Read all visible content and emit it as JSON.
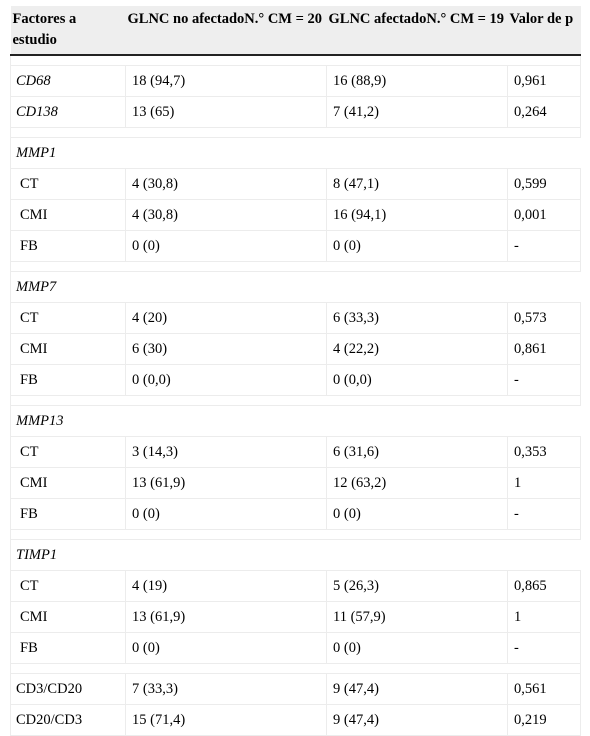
{
  "header": {
    "col1": "Factores a estudio",
    "col2": "GLNC no afectadoN.° CM = 20",
    "col3": "GLNC afectadoN.° CM = 19",
    "col4": "Valor de p"
  },
  "rows": {
    "cd68": {
      "factor": "CD68",
      "no": "18 (94,7)",
      "yes": "16 (88,9)",
      "p": "0,961"
    },
    "cd138": {
      "factor": "CD138",
      "no": "13 (65)",
      "yes": "7 (41,2)",
      "p": "0,264"
    },
    "mmp1": {
      "title": "MMP1",
      "ct": {
        "factor": "CT",
        "no": "4 (30,8)",
        "yes": "8 (47,1)",
        "p": "0,599"
      },
      "cmi": {
        "factor": "CMI",
        "no": "4 (30,8)",
        "yes": "16 (94,1)",
        "p": "0,001"
      },
      "fb": {
        "factor": "FB",
        "no": "0 (0)",
        "yes": "0 (0)",
        "p": "-"
      }
    },
    "mmp7": {
      "title": "MMP7",
      "ct": {
        "factor": "CT",
        "no": "4 (20)",
        "yes": "6 (33,3)",
        "p": "0,573"
      },
      "cmi": {
        "factor": "CMI",
        "no": "6 (30)",
        "yes": "4 (22,2)",
        "p": "0,861"
      },
      "fb": {
        "factor": "FB",
        "no": "0 (0,0)",
        "yes": "0 (0,0)",
        "p": "-"
      }
    },
    "mmp13": {
      "title": "MMP13",
      "ct": {
        "factor": "CT",
        "no": "3 (14,3)",
        "yes": "6 (31,6)",
        "p": "0,353"
      },
      "cmi": {
        "factor": "CMI",
        "no": "13 (61,9)",
        "yes": "12 (63,2)",
        "p": "1"
      },
      "fb": {
        "factor": "FB",
        "no": "0 (0)",
        "yes": "0 (0)",
        "p": "-"
      }
    },
    "timp1": {
      "title": "TIMP1",
      "ct": {
        "factor": "CT",
        "no": "4 (19)",
        "yes": "5 (26,3)",
        "p": "0,865"
      },
      "cmi": {
        "factor": "CMI",
        "no": "13 (61,9)",
        "yes": "11 (57,9)",
        "p": "1"
      },
      "fb": {
        "factor": "FB",
        "no": "0 (0)",
        "yes": "0 (0)",
        "p": "-"
      }
    },
    "cd3cd20": {
      "factor": "CD3/CD20",
      "no": "7 (33,3)",
      "yes": "9 (47,4)",
      "p": "0,561"
    },
    "cd20cd3": {
      "factor": "CD20/CD3",
      "no": "15 (71,4)",
      "yes": "9 (47,4)",
      "p": "0,219"
    }
  }
}
